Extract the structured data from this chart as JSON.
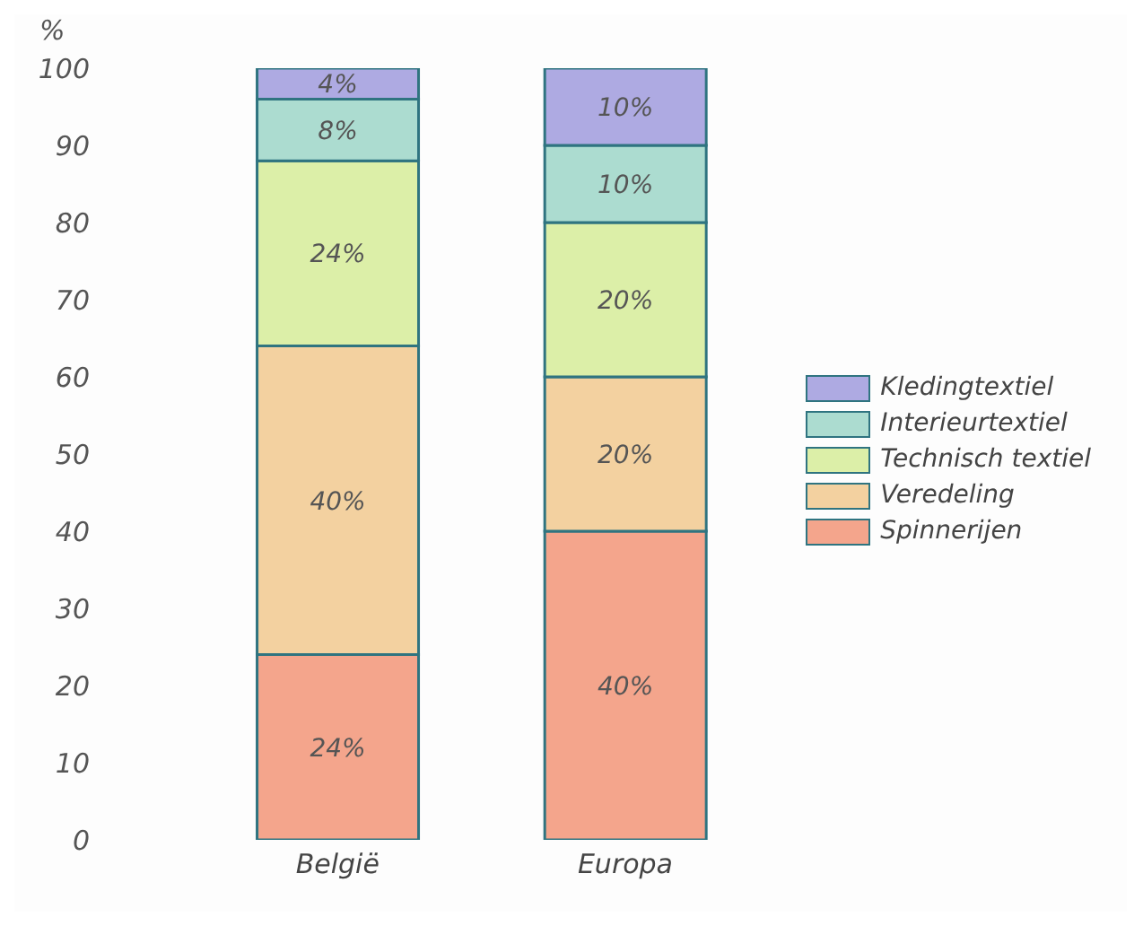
{
  "chart_data": {
    "type": "bar",
    "stacked": true,
    "ylabel": "%",
    "categories": [
      "België",
      "Europa"
    ],
    "series": [
      {
        "name": "Spinnerijen",
        "color": "#f4a58c",
        "values": [
          24,
          40
        ],
        "value_labels": [
          "24%",
          "40%"
        ]
      },
      {
        "name": "Veredeling",
        "color": "#f3d1a0",
        "values": [
          40,
          20
        ],
        "value_labels": [
          "40%",
          "20%"
        ]
      },
      {
        "name": "Technisch textiel",
        "color": "#dcefa8",
        "values": [
          24,
          20
        ],
        "value_labels": [
          "24%",
          "20%"
        ]
      },
      {
        "name": "Interieurtextiel",
        "color": "#acdcd0",
        "values": [
          8,
          10
        ],
        "value_labels": [
          "8%",
          "10%"
        ]
      },
      {
        "name": "Kledingtextiel",
        "color": "#aeaae2",
        "values": [
          4,
          10
        ],
        "value_labels": [
          "4%",
          "10%"
        ]
      }
    ],
    "ylim": [
      0,
      100
    ],
    "yticks": [
      0,
      10,
      20,
      30,
      40,
      50,
      60,
      70,
      80,
      90,
      100
    ],
    "legend": "right"
  }
}
